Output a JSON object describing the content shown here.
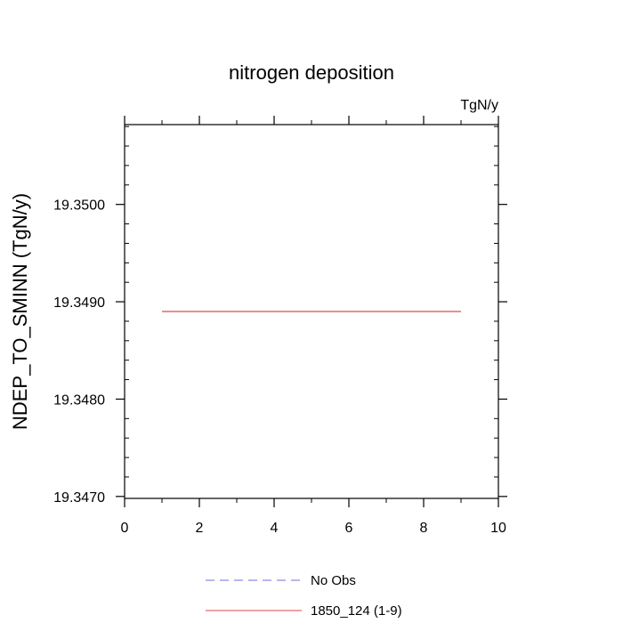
{
  "chart_data": {
    "type": "line",
    "title": "nitrogen deposition",
    "units_label": "TgN/y",
    "xlabel": "",
    "ylabel": "NDEP_TO_SMINN  (TgN/y)",
    "xlim": [
      0,
      10
    ],
    "ylim": [
      19.34698,
      19.35082
    ],
    "xticks": [
      0,
      2,
      4,
      6,
      8,
      10
    ],
    "xtick_labels": [
      "0",
      "2",
      "4",
      "6",
      "8",
      "10"
    ],
    "yticks": [
      19.347,
      19.348,
      19.349,
      19.35
    ],
    "ytick_labels": [
      "19.3470",
      "19.3480",
      "19.3490",
      "19.3500"
    ],
    "grid": false,
    "legend_position": "bottom-center",
    "series": [
      {
        "name": "No Obs",
        "color": "#8a8ae6",
        "style": "dashed",
        "x": [],
        "y": []
      },
      {
        "name": "1850_124 (1-9)",
        "color": "#e66a6a",
        "style": "solid",
        "x": [
          1,
          2,
          3,
          4,
          5,
          6,
          7,
          8,
          9
        ],
        "y": [
          19.3489,
          19.3489,
          19.3489,
          19.3489,
          19.3489,
          19.3489,
          19.3489,
          19.3489,
          19.3489
        ]
      }
    ]
  }
}
